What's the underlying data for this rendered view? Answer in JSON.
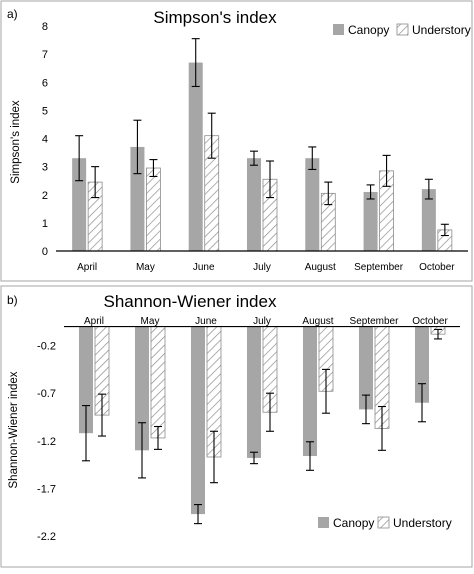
{
  "colors": {
    "canopy": "#a6a6a6",
    "understory_hatch": "#8c8c8c",
    "frame": "#a6a6a6"
  },
  "chart_data": [
    {
      "panel_label": "a)",
      "type": "bar",
      "title": "Simpson's index",
      "ylabel": "Simpson's index",
      "xlabel": "",
      "ylim": [
        0,
        8
      ],
      "yticks": [
        0,
        1,
        2,
        3,
        4,
        5,
        6,
        7,
        8
      ],
      "ytick_labels": [
        "0",
        "1",
        "2",
        "3",
        "4",
        "5",
        "6",
        "7",
        "8"
      ],
      "categories": [
        "April",
        "May",
        "June",
        "July",
        "August",
        "September",
        "October"
      ],
      "legend_position": "top-right",
      "series": [
        {
          "name": "Canopy",
          "style": "solid-gray",
          "values": [
            3.3,
            3.7,
            6.7,
            3.3,
            3.3,
            2.1,
            2.2
          ],
          "errors": [
            0.8,
            0.95,
            0.85,
            0.25,
            0.4,
            0.25,
            0.35
          ]
        },
        {
          "name": "Understory",
          "style": "hatched",
          "values": [
            2.45,
            2.95,
            4.1,
            2.55,
            2.05,
            2.85,
            0.75
          ],
          "errors": [
            0.55,
            0.3,
            0.8,
            0.65,
            0.4,
            0.55,
            0.2
          ]
        }
      ]
    },
    {
      "panel_label": "b)",
      "type": "bar",
      "title": "Shannon-Wiener index",
      "ylabel": "Shannon-Wiener index",
      "xlabel": "",
      "ylim": [
        -2.2,
        0.3
      ],
      "yticks": [
        -2.2,
        -1.7,
        -1.2,
        -0.7,
        -0.2
      ],
      "ytick_labels": [
        "-2.2",
        "-1.7",
        "-1.2",
        "-0.7",
        "-0.2"
      ],
      "categories": [
        "April",
        "May",
        "June",
        "July",
        "August",
        "September",
        "October"
      ],
      "legend_position": "bottom-right",
      "series": [
        {
          "name": "Canopy",
          "style": "solid-gray",
          "values": [
            -1.12,
            -1.3,
            -1.97,
            -1.38,
            -1.36,
            -0.87,
            -0.8
          ],
          "errors": [
            0.29,
            0.29,
            0.1,
            0.06,
            0.15,
            0.15,
            0.2
          ]
        },
        {
          "name": "Understory",
          "style": "hatched",
          "values": [
            -0.93,
            -1.17,
            -1.37,
            -0.9,
            -0.68,
            -1.07,
            -0.08
          ],
          "errors": [
            0.22,
            0.12,
            0.27,
            0.2,
            0.23,
            0.23,
            0.05
          ]
        }
      ]
    }
  ]
}
